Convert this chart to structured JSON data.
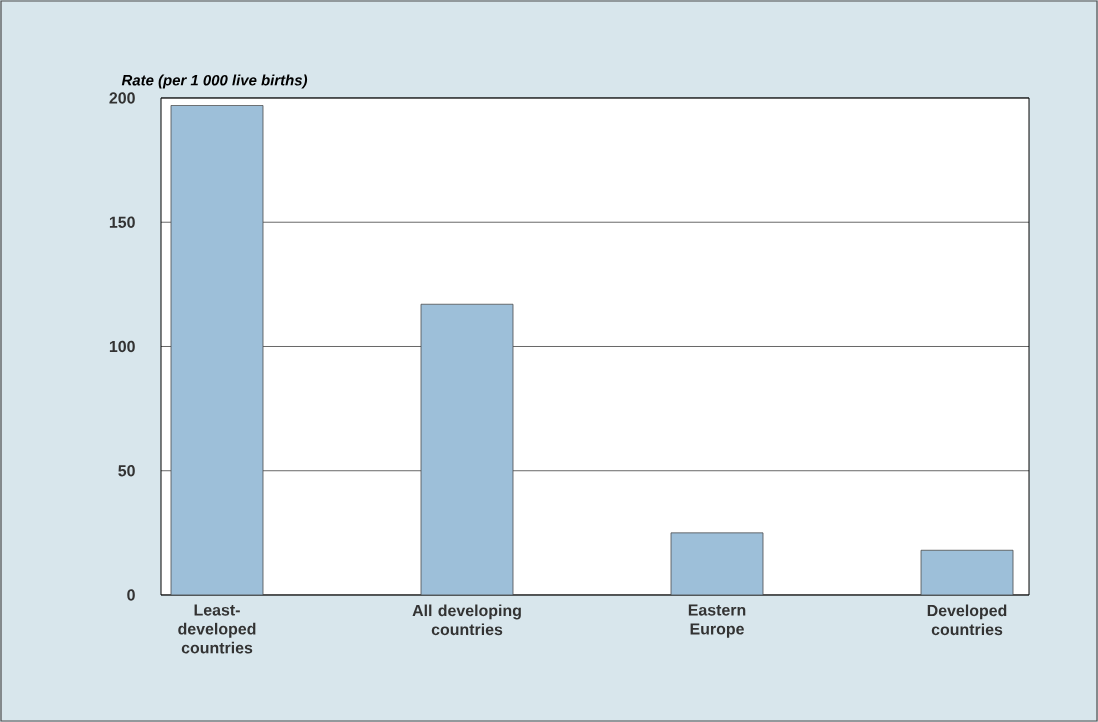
{
  "chart_data": {
    "type": "bar",
    "ylabel": "Rate (per 1 000 live births)",
    "categories": [
      "Least-developed countries",
      "All developing countries",
      "Eastern Europe",
      "Developed countries"
    ],
    "values": [
      197,
      117,
      25,
      18
    ],
    "color": "#9dbfd9",
    "ylim": [
      0,
      200
    ],
    "yticks": [
      0,
      50,
      100,
      150,
      200
    ],
    "grid": "y"
  }
}
